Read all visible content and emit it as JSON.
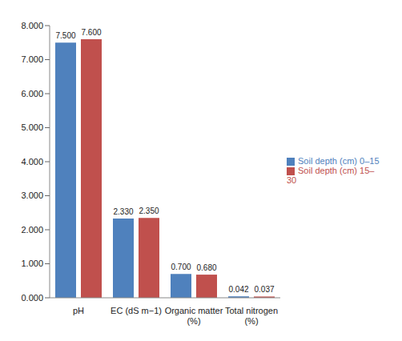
{
  "chart_data": {
    "type": "bar",
    "categories": [
      "pH",
      "EC (dS m−1)",
      "Organic matter (%)",
      "Total nitrogen (%)"
    ],
    "series": [
      {
        "name": "Soil depth (cm) 0–15",
        "color": "#4f81bd",
        "values": [
          7.5,
          2.33,
          0.7,
          0.042
        ],
        "value_labels": [
          "7.500",
          "2.330",
          "0.700",
          "0.042"
        ]
      },
      {
        "name": "Soil depth (cm) 15–30",
        "color": "#c0504d",
        "values": [
          7.6,
          2.35,
          0.68,
          0.037
        ],
        "value_labels": [
          "7.600",
          "2.350",
          "0.680",
          "0.037"
        ]
      }
    ],
    "ylim": [
      0,
      8
    ],
    "yticks": [
      {
        "value": 0,
        "label": "0.000"
      },
      {
        "value": 1,
        "label": "1.000"
      },
      {
        "value": 2,
        "label": "2.000"
      },
      {
        "value": 3,
        "label": "3.000"
      },
      {
        "value": 4,
        "label": "4.000"
      },
      {
        "value": 5,
        "label": "5.000"
      },
      {
        "value": 6,
        "label": "6.000"
      },
      {
        "value": 7,
        "label": "7.000"
      },
      {
        "value": 8,
        "label": "8.000"
      }
    ],
    "grid": false,
    "legend": "right",
    "data_labels": true
  }
}
